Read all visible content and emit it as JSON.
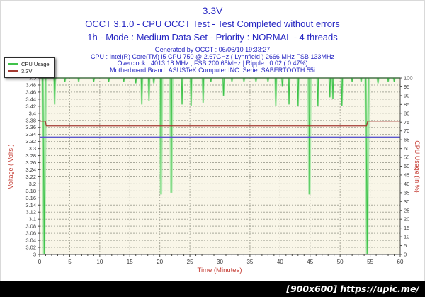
{
  "page": {
    "title": "3.3V",
    "subtitle1": "OCCT 3.1.0 - CPU OCCT Test - Test Completed without errors",
    "subtitle2": "1h - Mode : Medium Data Set - Priority : NORMAL - 4 threads",
    "info_lines": [
      "Generated by OCCT : 06/06/10 19:33:27",
      "CPU : Intel(R) Core(TM) i5 CPU 750 @ 2.67GHz ( Lynnfield ) 2666 MHz FSB 133MHz",
      "Overclock : 4013.18 MHz ; FSB 200.65MHz | Ripple : 0.02 ( 0.47%)",
      "Motherboard Brand :ASUSTeK Computer INC.,Serie :SABERTOOTH 55i"
    ]
  },
  "legend": {
    "items": [
      {
        "label": "CPU Usage",
        "color": "#3fc24a"
      },
      {
        "label": "3.3V",
        "color": "#a43a32"
      }
    ]
  },
  "watermark": {
    "text": "[900x600] https://upic.me/"
  },
  "chart_data": {
    "type": "line",
    "title": "3.3V",
    "grid_on": true,
    "legend_position": "top-left",
    "plot_bg": "#f9f6e8",
    "grid_color": "#a9a99b",
    "frame_color": "#4a4a44",
    "tick_text_color": "#3a3a3a",
    "x_axis": {
      "label": "Time (Minutes)",
      "min": 0,
      "max": 60,
      "tick_step": 5,
      "minor_step": 1,
      "tick_labels": [
        "0",
        "5",
        "10",
        "15",
        "20",
        "25",
        "30",
        "35",
        "40",
        "45",
        "50",
        "55",
        "60"
      ]
    },
    "y_left": {
      "label": "Voltage ( Volts )",
      "min": 3,
      "max": 3.5,
      "tick_step": 0.02,
      "tick_labels": [
        "3.5",
        "3.48",
        "3.46",
        "3.44",
        "3.42",
        "3.4",
        "3.38",
        "3.36",
        "3.34",
        "3.32",
        "3.3",
        "3.28",
        "3.26",
        "3.24",
        "3.22",
        "3.2",
        "3.18",
        "3.16",
        "3.14",
        "3.12",
        "3.1",
        "3.08",
        "3.06",
        "3.04",
        "3.02",
        "3"
      ]
    },
    "y_right": {
      "label": "CPU Usage (in %)",
      "min": 0,
      "max": 100,
      "tick_step": 5,
      "tick_labels": [
        "100",
        "95",
        "90",
        "85",
        "80",
        "75",
        "70",
        "65",
        "60",
        "55",
        "50",
        "45",
        "40",
        "35",
        "30",
        "25",
        "20",
        "15",
        "10",
        "5",
        "0"
      ]
    },
    "series": [
      {
        "name": "CPU Usage",
        "axis": "right",
        "color": "#3fc24a",
        "glow_color": "#a5e7a5",
        "baseline": 100,
        "dips": [
          [
            0.75,
            0
          ],
          [
            2.5,
            85
          ],
          [
            4.2,
            98
          ],
          [
            6.5,
            98
          ],
          [
            9.0,
            98
          ],
          [
            11.5,
            98
          ],
          [
            14.0,
            98
          ],
          [
            16.0,
            97
          ],
          [
            17.0,
            85
          ],
          [
            18.2,
            87
          ],
          [
            19.0,
            97
          ],
          [
            20.2,
            34
          ],
          [
            21.9,
            35
          ],
          [
            23.7,
            85
          ],
          [
            25.2,
            84
          ],
          [
            27.2,
            86
          ],
          [
            28.5,
            98
          ],
          [
            30.6,
            90
          ],
          [
            32.0,
            98
          ],
          [
            34.0,
            98
          ],
          [
            36.0,
            98
          ],
          [
            38.0,
            98
          ],
          [
            39.3,
            84
          ],
          [
            40.4,
            95
          ],
          [
            41.5,
            85
          ],
          [
            43.0,
            84
          ],
          [
            44.9,
            34
          ],
          [
            46.3,
            84
          ],
          [
            48.3,
            89
          ],
          [
            48.8,
            88
          ],
          [
            50.3,
            84
          ],
          [
            52.0,
            98
          ],
          [
            53.5,
            98
          ],
          [
            54.5,
            0
          ],
          [
            56.3,
            97
          ],
          [
            58.0,
            98
          ],
          [
            59.0,
            98
          ]
        ]
      },
      {
        "name": "3.3V",
        "axis": "left",
        "color": "#a43a32",
        "points": [
          [
            0,
            3.378
          ],
          [
            0.95,
            3.378
          ],
          [
            1.1,
            3.364
          ],
          [
            54.4,
            3.364
          ],
          [
            54.6,
            3.378
          ],
          [
            60,
            3.378
          ]
        ]
      }
    ],
    "reference_line": {
      "axis": "left",
      "value": 3.332,
      "color": "#5b57cd"
    }
  }
}
